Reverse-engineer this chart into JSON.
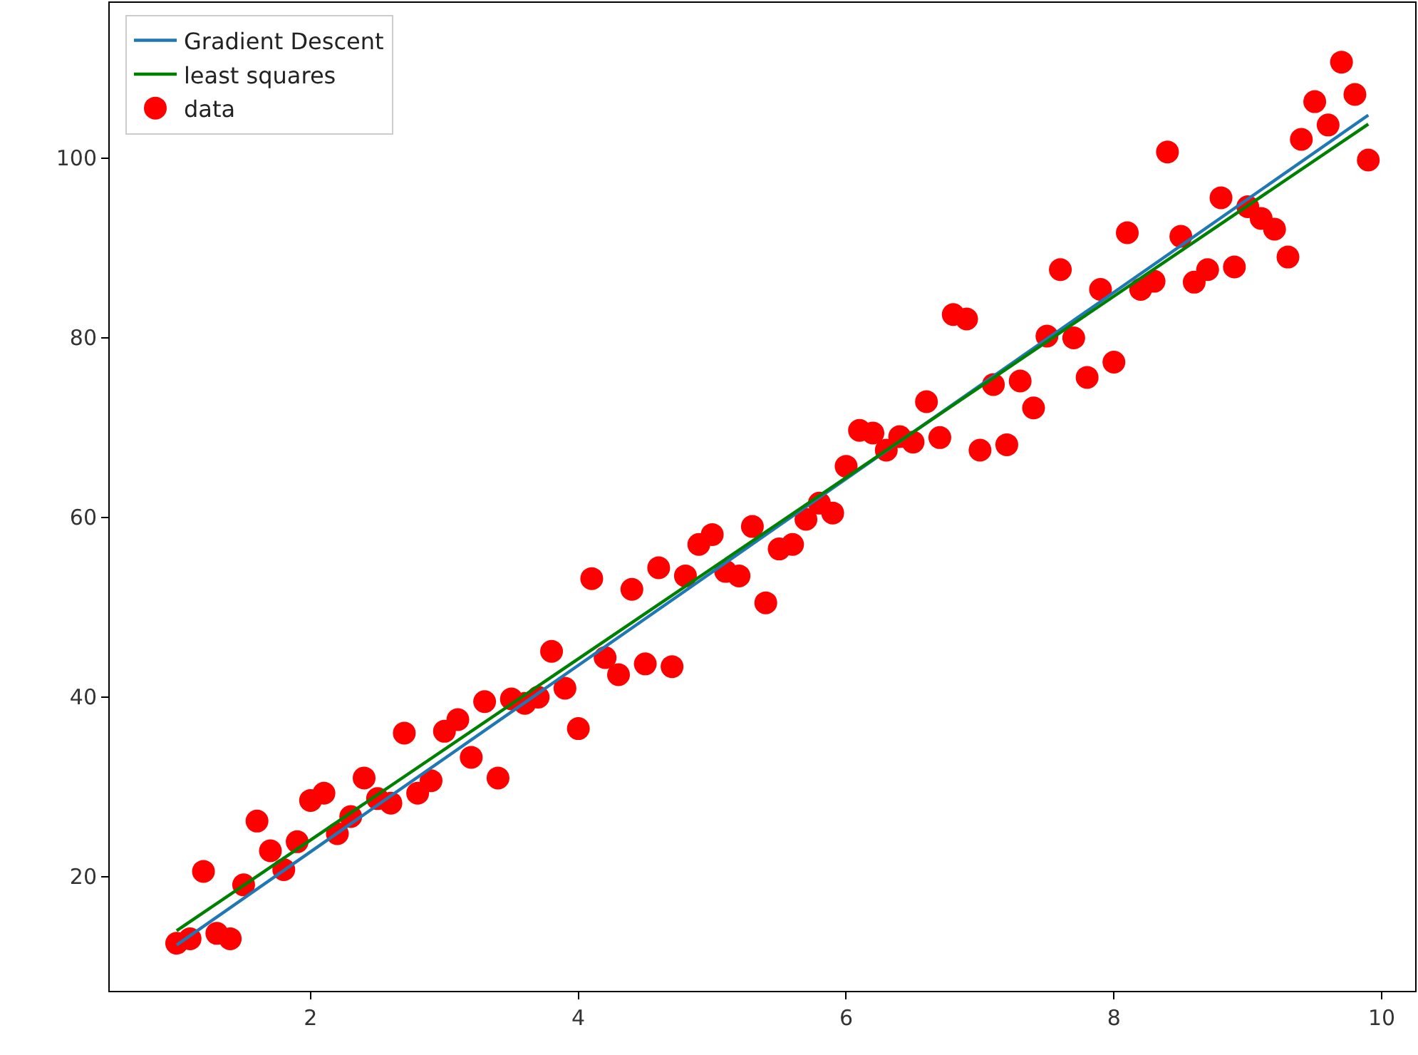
{
  "chart_data": {
    "type": "scatter",
    "xlim": [
      0.5,
      10.25
    ],
    "ylim": [
      7.3,
      117.3
    ],
    "xticks": [
      2,
      4,
      6,
      8,
      10
    ],
    "yticks": [
      20,
      40,
      60,
      80,
      100
    ],
    "legend": "top left",
    "series": [
      {
        "name": "Gradient Descent",
        "type": "line",
        "color": "#1f77b4",
        "x": [
          1.0,
          9.9
        ],
        "values": [
          12.4,
          104.8
        ],
        "marker": "none"
      },
      {
        "name": "least squares",
        "type": "line",
        "color": "#008000",
        "x": [
          1.0,
          9.9
        ],
        "values": [
          14.0,
          103.8
        ],
        "marker": "none"
      },
      {
        "name": "data",
        "color": "#ff0000",
        "marker": "circle",
        "x": [
          1.0,
          1.1,
          1.2,
          1.3,
          1.4,
          1.5,
          1.6,
          1.7,
          1.8,
          1.9,
          2.0,
          2.1,
          2.2,
          2.3,
          2.4,
          2.5,
          2.6,
          2.7,
          2.8,
          2.9,
          3.0,
          3.1,
          3.2,
          3.3,
          3.4,
          3.5,
          3.6,
          3.7,
          3.8,
          3.9,
          4.0,
          4.1,
          4.2,
          4.3,
          4.4,
          4.5,
          4.6,
          4.7,
          4.8,
          4.9,
          5.0,
          5.1,
          5.2,
          5.3,
          5.4,
          5.5,
          5.6,
          5.7,
          5.8,
          5.9,
          6.0,
          6.1,
          6.2,
          6.3,
          6.4,
          6.5,
          6.6,
          6.7,
          6.8,
          6.9,
          7.0,
          7.1,
          7.2,
          7.3,
          7.4,
          7.5,
          7.6,
          7.7,
          7.8,
          7.9,
          8.0,
          8.1,
          8.2,
          8.3,
          8.4,
          8.5,
          8.6,
          8.7,
          8.8,
          8.9,
          9.0,
          9.1,
          9.2,
          9.3,
          9.4,
          9.5,
          9.6,
          9.7,
          9.8,
          9.9
        ],
        "values": [
          12.6,
          13.1,
          20.6,
          13.7,
          13.1,
          19.1,
          26.2,
          22.9,
          20.8,
          23.9,
          28.5,
          29.3,
          24.8,
          26.7,
          31.0,
          28.7,
          28.2,
          36.0,
          29.3,
          30.7,
          36.2,
          37.5,
          33.3,
          39.5,
          31.0,
          39.8,
          39.3,
          40.0,
          45.1,
          41.0,
          36.5,
          53.2,
          44.4,
          42.5,
          52.0,
          43.7,
          54.4,
          43.4,
          53.5,
          57.0,
          58.1,
          54.0,
          53.5,
          59.0,
          50.5,
          56.5,
          57.0,
          59.8,
          61.6,
          60.5,
          65.7,
          69.7,
          69.4,
          67.5,
          69.0,
          68.4,
          72.9,
          68.9,
          82.6,
          82.1,
          67.5,
          74.8,
          68.1,
          75.2,
          72.2,
          80.2,
          87.6,
          80.0,
          75.6,
          85.4,
          77.3,
          91.7,
          85.4,
          86.3,
          100.7,
          91.3,
          86.2,
          87.6,
          95.6,
          87.9,
          94.6,
          93.3,
          92.1,
          89.0,
          102.1,
          106.3,
          103.7,
          110.7,
          107.1,
          99.8
        ]
      }
    ]
  }
}
